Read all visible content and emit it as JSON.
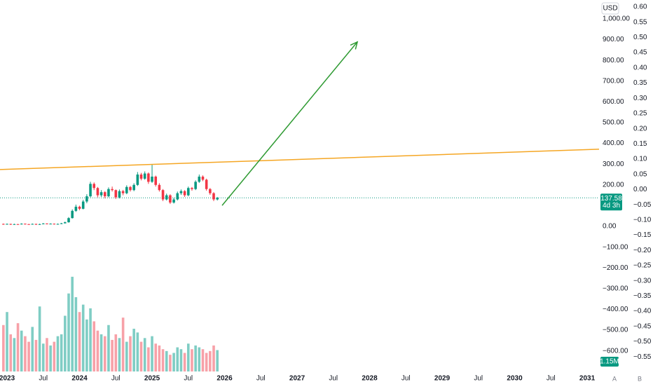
{
  "chart_data": {
    "type": "candlestick",
    "currency": "USD",
    "current_price": 137.58,
    "countdown": "4d 3h",
    "ui_buttons": [
      "A",
      "B"
    ],
    "colors": {
      "up": "#089981",
      "down": "#f23645",
      "up_volume": "#7fcdc4",
      "down_volume": "#f7a1a8"
    },
    "xlim": [
      2022.903,
      2031.164
    ],
    "xticks": [
      2023,
      {
        "value": 2023.5,
        "label": "Jul"
      },
      2024,
      {
        "value": 2024.5,
        "label": "Jul"
      },
      2025,
      {
        "value": 2025.5,
        "label": "Jul"
      },
      2026,
      {
        "value": 2026.5,
        "label": "Jul"
      },
      2027,
      {
        "value": 2027.5,
        "label": "Jul"
      },
      2028,
      {
        "value": 2028.5,
        "label": "Jul"
      },
      2029,
      {
        "value": 2029.5,
        "label": "Jul"
      },
      2030,
      {
        "value": 2030.5,
        "label": "Jul"
      },
      2031
    ],
    "ylim": [
      -699,
      1091
    ],
    "yticks": [
      {
        "value": 1000,
        "label": "1,000.00"
      },
      {
        "value": 900,
        "label": "900.00"
      },
      {
        "value": 800,
        "label": "800.00"
      },
      {
        "value": 700,
        "label": "700.00"
      },
      {
        "value": 600,
        "label": "600.00"
      },
      {
        "value": 500,
        "label": "500.00"
      },
      {
        "value": 400,
        "label": "400.00"
      },
      {
        "value": 300,
        "label": "300.00"
      },
      {
        "value": 200,
        "label": "200.00"
      },
      {
        "value": 0,
        "label": "0.00"
      },
      {
        "value": -100,
        "label": "−100.00"
      },
      {
        "value": -200,
        "label": "−200.00"
      },
      {
        "value": -300,
        "label": "−300.00"
      },
      {
        "value": -400,
        "label": "−400.00"
      },
      {
        "value": -500,
        "label": "−500.00"
      },
      {
        "value": -600,
        "label": "−600.00"
      }
    ],
    "y2lim": [
      -0.598,
      0.623
    ],
    "y2ticks": [
      {
        "value": 0.6,
        "label": "0.60"
      },
      {
        "value": 0.55,
        "label": "0.55"
      },
      {
        "value": 0.5,
        "label": "0.50"
      },
      {
        "value": 0.45,
        "label": "0.45"
      },
      {
        "value": 0.4,
        "label": "0.40"
      },
      {
        "value": 0.35,
        "label": "0.35"
      },
      {
        "value": 0.3,
        "label": "0.30"
      },
      {
        "value": 0.25,
        "label": "0.25"
      },
      {
        "value": 0.2,
        "label": "0.20"
      },
      {
        "value": 0.15,
        "label": "0.15"
      },
      {
        "value": 0.1,
        "label": "0.10"
      },
      {
        "value": 0.05,
        "label": "0.05"
      },
      {
        "value": 0,
        "label": "0.00"
      },
      {
        "value": -0.05,
        "label": "−0.05"
      },
      {
        "value": -0.1,
        "label": "−0.10"
      },
      {
        "value": -0.15,
        "label": "−0.15"
      },
      {
        "value": -0.2,
        "label": "−0.20"
      },
      {
        "value": -0.25,
        "label": "−0.25"
      },
      {
        "value": -0.3,
        "label": "−0.30"
      },
      {
        "value": -0.35,
        "label": "−0.35"
      },
      {
        "value": -0.4,
        "label": "−0.40"
      },
      {
        "value": -0.45,
        "label": "−0.45"
      },
      {
        "value": -0.5,
        "label": "−0.50"
      },
      {
        "value": -0.55,
        "label": "−0.55"
      }
    ],
    "x": [
      2022.95,
      2023.0,
      2023.05,
      2023.1,
      2023.15,
      2023.2,
      2023.25,
      2023.3,
      2023.35,
      2023.4,
      2023.45,
      2023.5,
      2023.55,
      2023.6,
      2023.65,
      2023.7,
      2023.75,
      2023.8,
      2023.85,
      2023.9,
      2023.95,
      2024.0,
      2024.05,
      2024.1,
      2024.15,
      2024.2,
      2024.25,
      2024.3,
      2024.35,
      2024.4,
      2024.45,
      2024.5,
      2024.55,
      2024.6,
      2024.65,
      2024.7,
      2024.75,
      2024.8,
      2024.85,
      2024.9,
      2024.95,
      2025.0,
      2025.05,
      2025.1,
      2025.15,
      2025.2,
      2025.25,
      2025.3,
      2025.35,
      2025.4,
      2025.45,
      2025.5,
      2025.55,
      2025.6,
      2025.65,
      2025.7,
      2025.75,
      2025.8,
      2025.85,
      2025.9
    ],
    "candles": [
      [
        12,
        14,
        8,
        10
      ],
      [
        10,
        14,
        9,
        12
      ],
      [
        12,
        13,
        7,
        9
      ],
      [
        9,
        13,
        8,
        11
      ],
      [
        11,
        12,
        8,
        10
      ],
      [
        10,
        15,
        9,
        13
      ],
      [
        13,
        14,
        9,
        11
      ],
      [
        11,
        12,
        8,
        10
      ],
      [
        10,
        14,
        9,
        12
      ],
      [
        12,
        13,
        7,
        9
      ],
      [
        9,
        13,
        8,
        11
      ],
      [
        11,
        16,
        10,
        14
      ],
      [
        14,
        15,
        10,
        12
      ],
      [
        12,
        15,
        11,
        13
      ],
      [
        13,
        14,
        9,
        11
      ],
      [
        11,
        14,
        10,
        12
      ],
      [
        12,
        17,
        11,
        15
      ],
      [
        15,
        23,
        14,
        20
      ],
      [
        20,
        45,
        18,
        40
      ],
      [
        40,
        82,
        38,
        75
      ],
      [
        75,
        105,
        70,
        95
      ],
      [
        95,
        100,
        78,
        85
      ],
      [
        85,
        128,
        82,
        120
      ],
      [
        120,
        155,
        112,
        145
      ],
      [
        145,
        215,
        140,
        205
      ],
      [
        205,
        212,
        175,
        185
      ],
      [
        185,
        190,
        140,
        150
      ],
      [
        150,
        175,
        142,
        165
      ],
      [
        165,
        170,
        135,
        145
      ],
      [
        145,
        188,
        140,
        180
      ],
      [
        180,
        192,
        168,
        175
      ],
      [
        175,
        178,
        132,
        140
      ],
      [
        140,
        178,
        135,
        170
      ],
      [
        170,
        176,
        150,
        160
      ],
      [
        160,
        198,
        155,
        190
      ],
      [
        190,
        195,
        168,
        175
      ],
      [
        175,
        208,
        170,
        200
      ],
      [
        200,
        262,
        195,
        250
      ],
      [
        250,
        258,
        222,
        230
      ],
      [
        230,
        265,
        225,
        255
      ],
      [
        255,
        260,
        205,
        215
      ],
      [
        215,
        297,
        210,
        240
      ],
      [
        240,
        245,
        192,
        200
      ],
      [
        200,
        208,
        168,
        175
      ],
      [
        175,
        180,
        122,
        130
      ],
      [
        130,
        158,
        125,
        150
      ],
      [
        150,
        155,
        108,
        115
      ],
      [
        115,
        138,
        110,
        130
      ],
      [
        130,
        168,
        125,
        160
      ],
      [
        160,
        178,
        152,
        170
      ],
      [
        170,
        175,
        142,
        150
      ],
      [
        150,
        192,
        145,
        185
      ],
      [
        185,
        190,
        172,
        180
      ],
      [
        180,
        222,
        175,
        215
      ],
      [
        215,
        250,
        210,
        240
      ],
      [
        240,
        246,
        218,
        225
      ],
      [
        225,
        230,
        172,
        180
      ],
      [
        180,
        185,
        152,
        160
      ],
      [
        160,
        165,
        122,
        130
      ],
      [
        130,
        142,
        125,
        137.58
      ]
    ],
    "volume": {
      "lim": [
        0,
        20000000
      ],
      "values": [
        2500000,
        3200000,
        2000000,
        1800000,
        2600000,
        2200000,
        1900000,
        1600000,
        2400000,
        1700000,
        3500000,
        1500000,
        1800000,
        1400000,
        1600000,
        1900000,
        2000000,
        3000000,
        4200000,
        5100000,
        4000000,
        3200000,
        3600000,
        2800000,
        3400000,
        2700000,
        2200000,
        2000000,
        1900000,
        2500000,
        1700000,
        2000000,
        1800000,
        2900000,
        1600000,
        1900000,
        2300000,
        2100000,
        1600000,
        1800000,
        1300000,
        1900000,
        1500000,
        1400000,
        1200000,
        1100000,
        900000,
        1000000,
        1300000,
        1200000,
        1000000,
        1500000,
        1200000,
        1400000,
        1300000,
        1200000,
        1000000,
        1100000,
        1400000,
        1150000
      ],
      "last_label": "1.15M"
    },
    "trendline": {
      "color": "#f5a623",
      "start": {
        "x": 2022.903,
        "y": 274
      },
      "end": {
        "x": 2031.164,
        "y": 372
      }
    },
    "arrow": {
      "color": "#2e9a32",
      "start": {
        "x": 2025.966,
        "y": 101
      },
      "end": {
        "x": 2027.831,
        "y": 889
      }
    }
  }
}
